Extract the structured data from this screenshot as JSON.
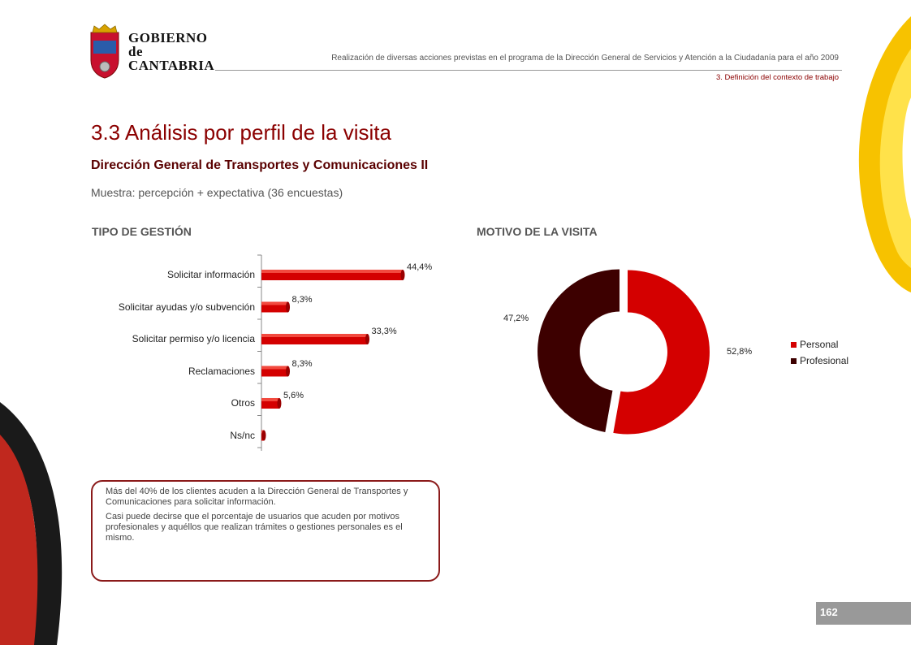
{
  "logo": {
    "line1": "GOBIERNO",
    "line2": "de",
    "line3": "CANTABRIA",
    "icon": "coat-of-arms-icon"
  },
  "header": {
    "text": "Realización de diversas acciones previstas en el programa de la Dirección General de Servicios y Atención a la Ciudadanía para el año 2009",
    "section": "3. Definición del contexto de trabajo"
  },
  "page": {
    "title": "3.3 Análisis por perfil de la visita",
    "subtitle": "Dirección General de Transportes y Comunicaciones II",
    "sample": "Muestra: percepción + expectativa (36 encuestas)",
    "number": "162"
  },
  "colors": {
    "accent": "#8b0000",
    "bar": "#d40000",
    "personal": "#d40000",
    "profesional": "#3d0000"
  },
  "chart_data": [
    {
      "type": "bar",
      "orientation": "horizontal",
      "title": "TIPO DE GESTIÓN",
      "categories": [
        "Solicitar información",
        "Solicitar ayudas y/o subvención",
        "Solicitar permiso y/o licencia",
        "Reclamaciones",
        "Otros",
        "Ns/nc"
      ],
      "values": [
        44.4,
        8.3,
        33.3,
        8.3,
        5.6,
        0
      ],
      "labels": [
        "44,4%",
        "8,3%",
        "33,3%",
        "8,3%",
        "5,6%",
        ""
      ],
      "xlim": [
        0,
        50
      ]
    },
    {
      "type": "pie",
      "donut": true,
      "title": "MOTIVO DE LA VISITA",
      "categories": [
        "Personal",
        "Profesional"
      ],
      "values": [
        52.8,
        47.2
      ],
      "labels": [
        "52,8%",
        "47,2%"
      ],
      "legend": "right"
    }
  ],
  "note": {
    "p1": "Más del 40% de los clientes acuden a la Dirección General  de Transportes y Comunicaciones para solicitar información.",
    "p2": "Casi puede decirse que el porcentaje de usuarios que acuden por motivos profesionales y aquéllos que realizan trámites o gestiones personales es el mismo."
  }
}
